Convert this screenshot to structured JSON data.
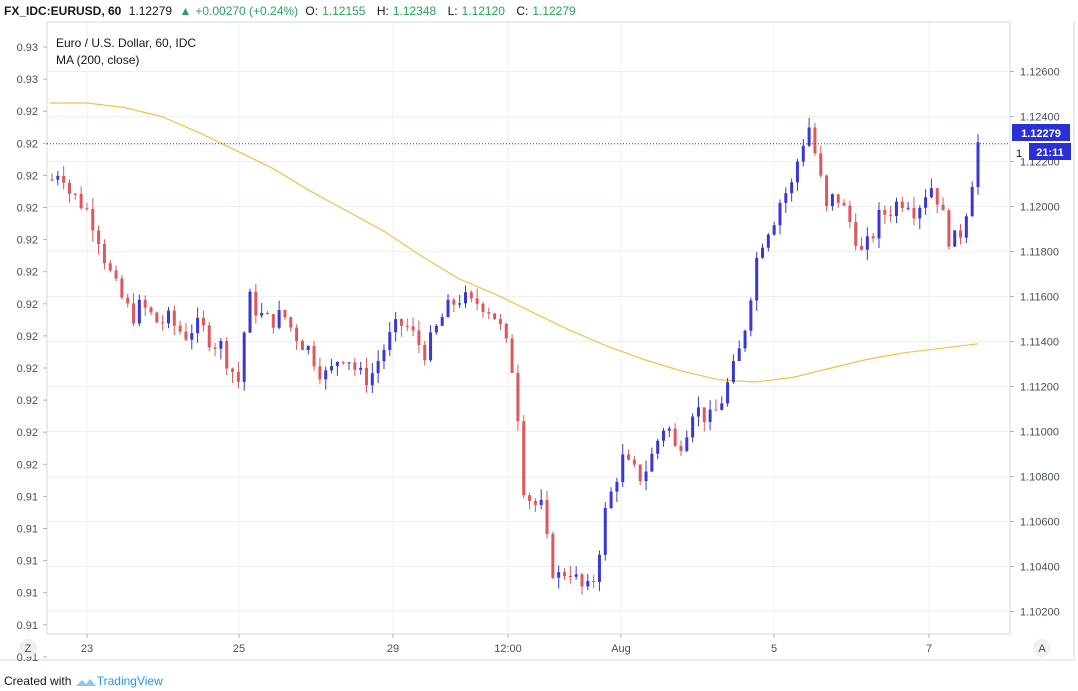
{
  "header": {
    "symbol": "FX_IDC:EURUSD, 60",
    "last": "1.12279",
    "change": "+0.00270 (+0.24%)",
    "open_label": "O:",
    "open": "1.12155",
    "high_label": "H:",
    "high": "1.12348",
    "low_label": "L:",
    "low": "1.12120",
    "close_label": "C:",
    "close": "1.12279"
  },
  "colors": {
    "up": "#3a37d9",
    "down": "#e0575a",
    "ma": "#f5c242",
    "price_line": "#2a2fb0",
    "grid": "#eceff3",
    "axis_text": "#4a4f5a",
    "badge": "#2a2fd6"
  },
  "chart_data": {
    "type": "candlestick",
    "legend": [
      "Euro / U.S. Dollar, 60, IDC",
      "MA (200, close)"
    ],
    "right_axis": {
      "ticks": [
        "1.12600",
        "1.12400",
        "1.12200",
        "1.12000",
        "1.11800",
        "1.11600",
        "1.11400",
        "1.11200",
        "1.11000",
        "1.10800",
        "1.10600",
        "1.10400",
        "1.10200"
      ],
      "ylim": [
        1.101,
        1.1282
      ]
    },
    "left_axis": {
      "ticks": [
        "0.93",
        "0.93",
        "0.92",
        "0.92",
        "0.92",
        "0.92",
        "0.92",
        "0.92",
        "0.92",
        "0.92",
        "0.92",
        "0.92",
        "0.92",
        "0.92",
        "0.91",
        "0.91",
        "0.91",
        "0.91",
        "0.91",
        "0.91",
        "0.91"
      ]
    },
    "x_ticks": [
      "23",
      "25",
      "29",
      "12:00",
      "Aug",
      "5",
      "7"
    ],
    "current_price": "1.12279",
    "countdown": "21:11",
    "corner_left": "Z",
    "corner_right": "A",
    "ma": [
      1.1246,
      1.1246,
      1.1244,
      1.124,
      1.1233,
      1.1225,
      1.1217,
      1.1207,
      1.1198,
      1.1189,
      1.1178,
      1.1168,
      1.1161,
      1.1153,
      1.1145,
      1.1138,
      1.1132,
      1.1127,
      1.1123,
      1.1122,
      1.1124,
      1.1128,
      1.1132,
      1.1135,
      1.1137,
      1.1139
    ],
    "closes": [
      1.1212,
      1.1218,
      1.1206,
      1.1203,
      1.1198,
      1.119,
      1.1176,
      1.1165,
      1.1158,
      1.1151,
      1.1156,
      1.1152,
      1.1148,
      1.115,
      1.1146,
      1.1143,
      1.1147,
      1.1145,
      1.114,
      1.1138,
      1.1129,
      1.1122,
      1.116,
      1.1154,
      1.1149,
      1.115,
      1.1152,
      1.1145,
      1.114,
      1.1136,
      1.1128,
      1.1124,
      1.1132,
      1.1135,
      1.1128,
      1.1123,
      1.1126,
      1.1135,
      1.1142,
      1.1148,
      1.1146,
      1.114,
      1.1135,
      1.1144,
      1.1152,
      1.1157,
      1.116,
      1.1156,
      1.1158,
      1.1155,
      1.115,
      1.1138,
      1.1124,
      1.1075,
      1.1068,
      1.1066,
      1.104,
      1.1035,
      1.104,
      1.1033,
      1.1028,
      1.1036,
      1.1062,
      1.1075,
      1.1088,
      1.1083,
      1.108,
      1.1085,
      1.1096,
      1.1105,
      1.1092,
      1.1098,
      1.1111,
      1.1108,
      1.1105,
      1.1112,
      1.1122,
      1.1132,
      1.115,
      1.1175,
      1.1188,
      1.1194,
      1.1205,
      1.1208,
      1.1225,
      1.1236,
      1.1218,
      1.1198,
      1.1206,
      1.1198,
      1.119,
      1.1178,
      1.1186,
      1.1196,
      1.1198,
      1.1202,
      1.1204,
      1.1198,
      1.1206,
      1.121,
      1.1196,
      1.1183,
      1.1188,
      1.1204,
      1.1228
    ]
  },
  "footer": {
    "created_with": "Created with",
    "brand": "TradingView"
  }
}
